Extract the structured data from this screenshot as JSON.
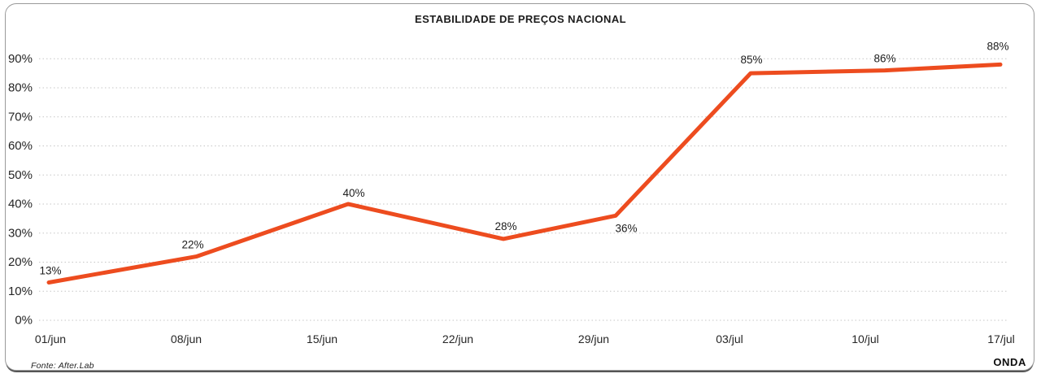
{
  "card": {
    "title": "ESTABILIDADE DE PREÇOS NACIONAL",
    "source": "Fonte: After.Lab",
    "brand": "ONDA"
  },
  "chart_data": {
    "type": "line",
    "title": "ESTABILIDADE DE PREÇOS NACIONAL",
    "categories": [
      "01/jun",
      "08/jun",
      "15/jun",
      "22/jun",
      "29/jun",
      "03/jul",
      "10/jul",
      "17/jul"
    ],
    "values": [
      13,
      22,
      40,
      28,
      36,
      85,
      86,
      88
    ],
    "data_labels": [
      "13%",
      "22%",
      "40%",
      "28%",
      "36%",
      "85%",
      "86%",
      "88%"
    ],
    "y_ticks": [
      0,
      10,
      20,
      30,
      40,
      50,
      60,
      70,
      80,
      90
    ],
    "y_tick_labels": [
      "0%",
      "10%",
      "20%",
      "30%",
      "40%",
      "50%",
      "60%",
      "70%",
      "80%",
      "90%"
    ],
    "ylim": [
      0,
      90
    ],
    "xlabel": "",
    "ylabel": "",
    "grid": "dotted-horizontal",
    "legend": "none",
    "line_color": "#ED4C1F",
    "gridline_color": "#c6c6c6",
    "text_color": "#262626",
    "source": "Fonte: After.Lab",
    "brand": "ONDA"
  }
}
